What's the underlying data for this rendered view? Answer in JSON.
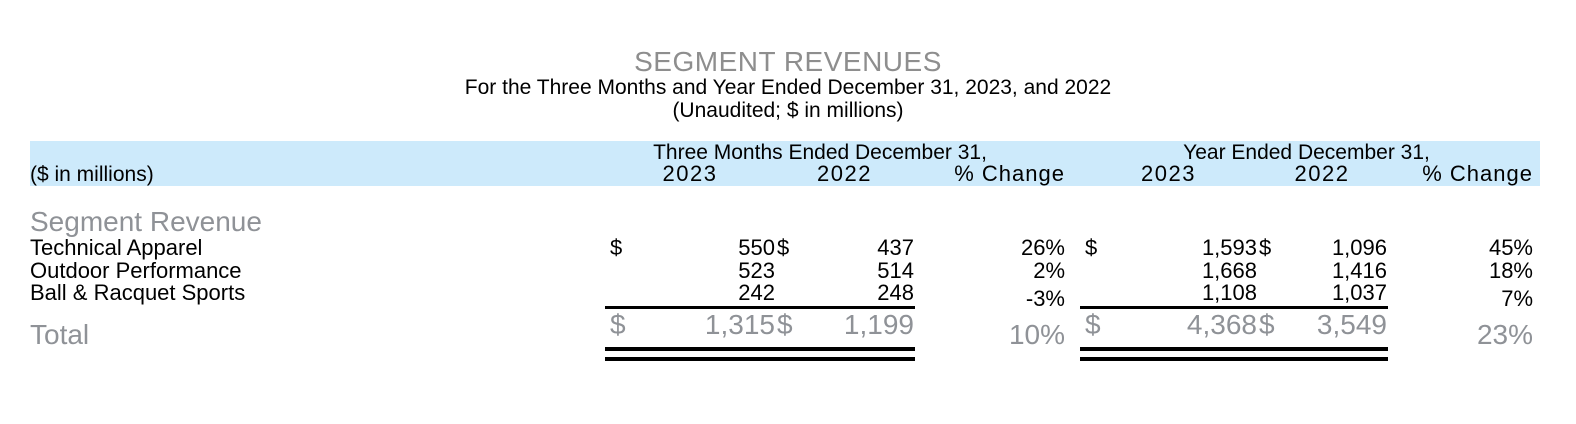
{
  "header": {
    "title": "SEGMENT REVENUES",
    "subtitle_line1": "For the Three Months and Year Ended December 31, 2023, and 2022",
    "subtitle_line2": "(Unaudited; $ in millions)"
  },
  "table": {
    "units_label": "($ in millions)",
    "three_months": {
      "title": "Three Months Ended December 31,",
      "col_2023": "2023",
      "col_2022": "2022",
      "col_pct": "% Change"
    },
    "year": {
      "title": "Year Ended December 31,",
      "col_2023": "2023",
      "col_2022": "2022",
      "col_pct": "% Change"
    },
    "section_heading": "Segment Revenue",
    "rows": [
      {
        "label": "Technical Apparel",
        "cur": "$",
        "tm23": "550",
        "cur2": "$",
        "tm22": "437",
        "tm_pct": "26%",
        "ycur": "$",
        "yr23": "1,593",
        "ycur2": "$",
        "yr22": "1,096",
        "yr_pct": "45%"
      },
      {
        "label": "Outdoor Performance",
        "cur": "",
        "tm23": "523",
        "cur2": "",
        "tm22": "514",
        "tm_pct": "2%",
        "ycur": "",
        "yr23": "1,668",
        "ycur2": "",
        "yr22": "1,416",
        "yr_pct": "18%"
      },
      {
        "label": "Ball & Racquet Sports",
        "cur": "",
        "tm23": "242",
        "cur2": "",
        "tm22": "248",
        "tm_pct": "-3%",
        "ycur": "",
        "yr23": "1,108",
        "ycur2": "",
        "yr22": "1,037",
        "yr_pct": "7%"
      }
    ],
    "total": {
      "label": "Total",
      "cur": "$",
      "tm23": "1,315",
      "cur2": "$",
      "tm22": "1,199",
      "tm_pct": "10%",
      "ycur": "$",
      "yr23": "4,368",
      "ycur2": "$",
      "yr22": "3,549",
      "yr_pct": "23%"
    }
  },
  "colors": {
    "band": "#cdeafb",
    "title_gray": "#8e8e8e",
    "muted_gray": "#8f9297",
    "text": "#000000",
    "rule": "#000000"
  }
}
